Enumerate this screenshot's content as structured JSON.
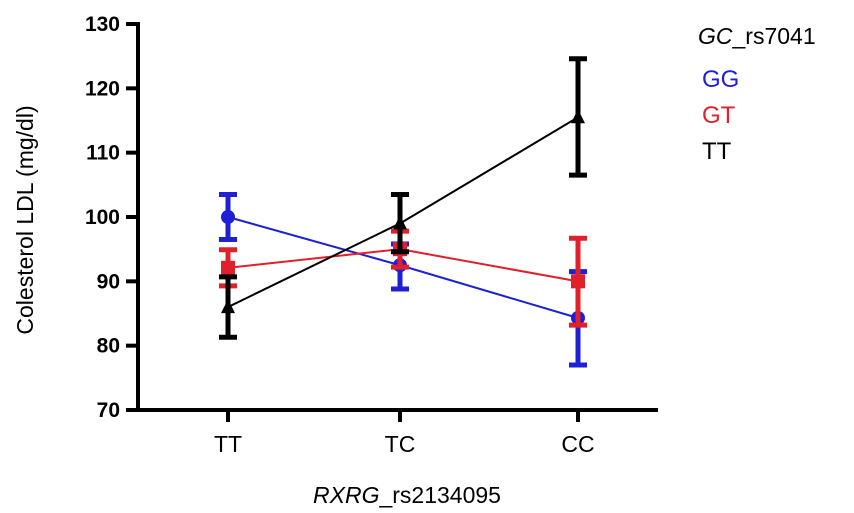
{
  "chart_data": {
    "type": "line",
    "categories": [
      "TT",
      "TC",
      "CC"
    ],
    "ylim": [
      70,
      130
    ],
    "yticks": [
      70,
      80,
      90,
      100,
      110,
      120,
      130
    ],
    "ylabel": "Colesterol LDL (mg/dl)",
    "xlabel": {
      "gene": "RXRG",
      "snp": "_rs2134095"
    },
    "legend": {
      "gene": "GC",
      "snp": "_rs7041",
      "placement": "top-right"
    },
    "series": [
      {
        "name": "GG",
        "color": "#1f1fd6",
        "marker": "circle",
        "values": [
          100.0,
          92.5,
          84.3
        ],
        "lower": [
          96.5,
          88.8,
          77.0
        ],
        "upper": [
          103.5,
          95.8,
          91.5
        ]
      },
      {
        "name": "GT",
        "color": "#e0202a",
        "marker": "square",
        "values": [
          92.1,
          95.0,
          90.0
        ],
        "lower": [
          89.3,
          92.2,
          83.2
        ],
        "upper": [
          94.9,
          97.8,
          96.7
        ]
      },
      {
        "name": "TT",
        "color": "#000000",
        "marker": "triangle",
        "values": [
          86.0,
          99.0,
          115.5
        ],
        "lower": [
          81.3,
          94.6,
          106.5
        ],
        "upper": [
          90.7,
          103.5,
          124.6
        ]
      }
    ]
  }
}
